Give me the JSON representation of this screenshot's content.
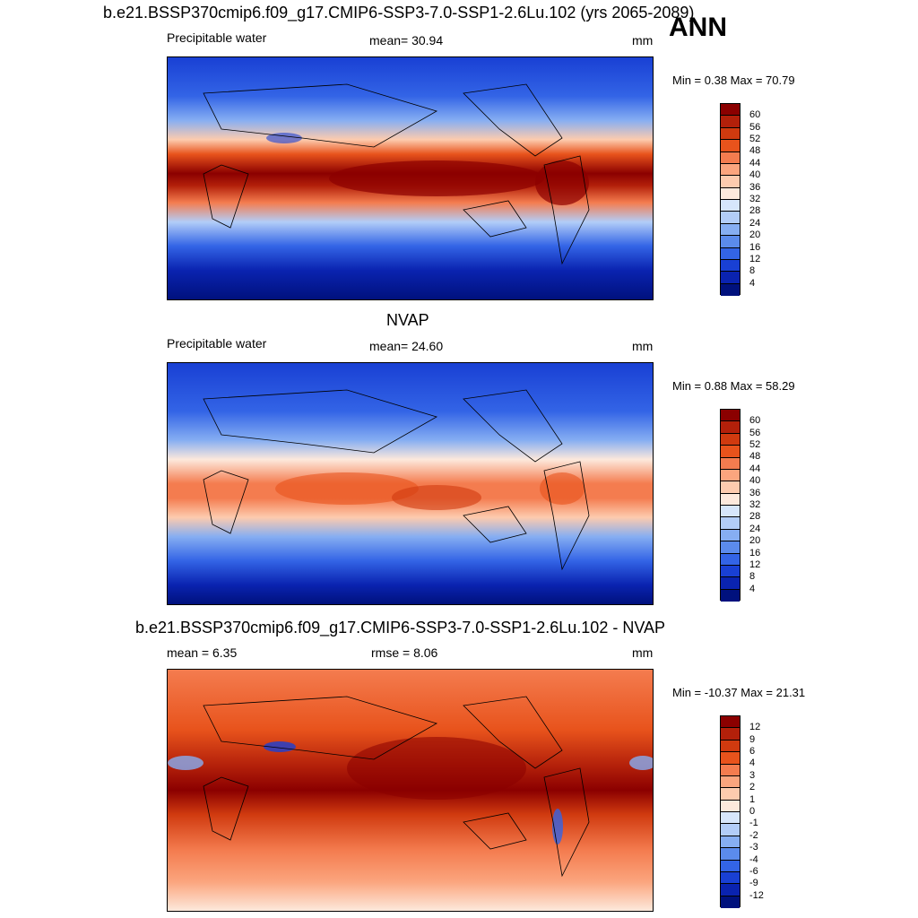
{
  "header": {
    "title": "b.e21.BSSP370cmip6.f09_g17.CMIP6-SSP3-7.0-SSP1-2.6Lu.102 (yrs 2065-2089)",
    "season": "ANN"
  },
  "panels": [
    {
      "title": "",
      "left_label": "Precipitable water",
      "center_label": "mean=  30.94",
      "right_label": "mm",
      "minmax": "Min =   0.38 Max =  70.79"
    },
    {
      "title": "NVAP",
      "left_label": "Precipitable water",
      "center_label": "mean=  24.60",
      "right_label": "mm",
      "minmax": "Min =   0.88 Max =  58.29"
    },
    {
      "title": "b.e21.BSSP370cmip6.f09_g17.CMIP6-SSP3-7.0-SSP1-2.6Lu.102 - NVAP",
      "left_label": "mean =   6.35",
      "center_label": "rmse =   8.06",
      "right_label": "mm",
      "minmax": "Min = -10.37 Max =  21.31"
    }
  ],
  "colorbars": {
    "field_levels": [
      "60",
      "56",
      "52",
      "48",
      "44",
      "40",
      "36",
      "32",
      "28",
      "24",
      "20",
      "16",
      "12",
      "8",
      "4"
    ],
    "diff_levels": [
      "12",
      "9",
      "6",
      "4",
      "3",
      "2",
      "1",
      "0",
      "-1",
      "-2",
      "-3",
      "-4",
      "-6",
      "-9",
      "-12"
    ],
    "colors": [
      "#8b0000",
      "#b3200a",
      "#d03a0f",
      "#e8531c",
      "#f47c4f",
      "#fba57e",
      "#fdcbae",
      "#fde9dc",
      "#d6e6fb",
      "#b2cdf8",
      "#86aef2",
      "#5b8bec",
      "#3364e6",
      "#1940d4",
      "#0a23b0",
      "#00117d"
    ]
  }
}
